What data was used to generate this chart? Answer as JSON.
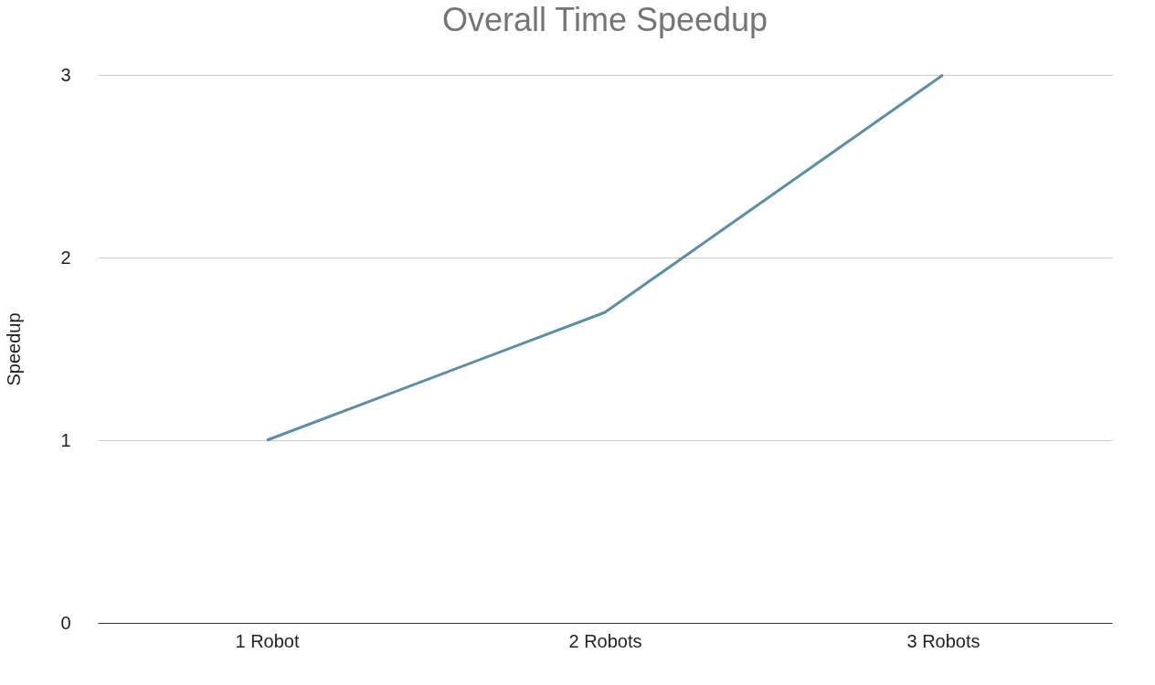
{
  "chart_data": {
    "type": "line",
    "title": "Overall Time Speedup",
    "ylabel": "Speedup",
    "categories": [
      "1 Robot",
      "2 Robots",
      "3 Robots"
    ],
    "series": [
      {
        "color": "#5b8fa8",
        "values": [
          1,
          1.7,
          3
        ]
      }
    ],
    "ylim": [
      0,
      3
    ],
    "yticks": [
      0,
      1,
      2,
      3
    ],
    "grid": "y",
    "marker": "none",
    "line_style": "solid"
  }
}
